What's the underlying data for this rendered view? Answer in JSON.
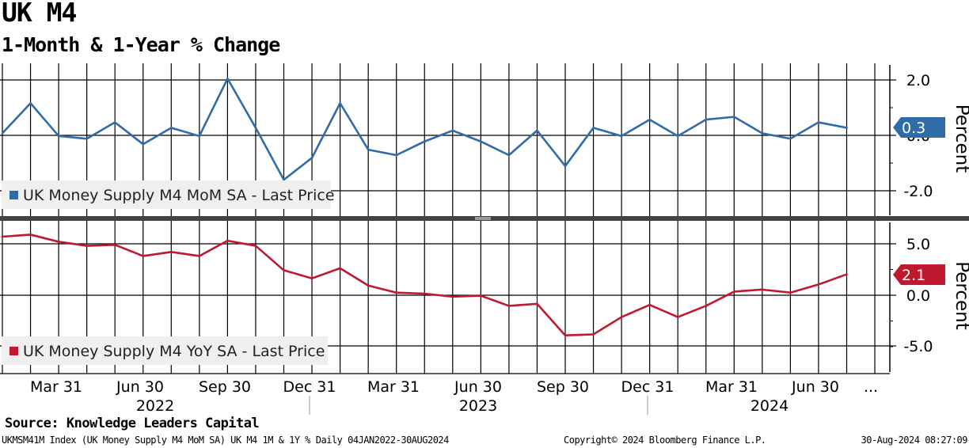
{
  "title": "UK M4",
  "subtitle": "1-Month & 1-Year % Change",
  "source": "Source: Knowledge Leaders Capital",
  "footer": {
    "left": "UKMSM41M Index (UK Money Supply M4 MoM SA) UK M4 1M & 1Y %  Daily 04JAN2022-30AUG2024",
    "middle": "Copyright© 2024 Bloomberg Finance L.P.",
    "right": "30-Aug-2024 08:27:09"
  },
  "colors": {
    "mom": "#2f6ca8",
    "yoy": "#c0182f"
  },
  "chart_data": [
    {
      "type": "line",
      "panel": "top",
      "series": [
        {
          "name": "UK Money Supply M4 MoM SA - Last Price",
          "values": [
            0.1,
            1.2,
            0.0,
            -0.1,
            0.5,
            -0.3,
            0.3,
            0.0,
            2.1,
            0.3,
            -1.6,
            -0.8,
            1.2,
            -0.5,
            -0.7,
            -0.2,
            0.2,
            -0.2,
            -0.7,
            0.2,
            -1.1,
            0.3,
            0.0,
            0.6,
            0.0,
            0.6,
            0.7,
            0.1,
            -0.1,
            0.5,
            0.3
          ]
        }
      ],
      "last_value_label": "0.3",
      "ylabel": "Percent",
      "yticks": [
        "2.0",
        "0.0",
        "-2.0"
      ],
      "ylim": [
        -2.9,
        2.6
      ]
    },
    {
      "type": "line",
      "panel": "bottom",
      "series": [
        {
          "name": "UK Money Supply M4 YoY SA - Last Price",
          "values": [
            5.8,
            6.0,
            5.3,
            4.9,
            5.0,
            3.9,
            4.3,
            3.9,
            5.4,
            4.9,
            2.5,
            1.7,
            2.7,
            1.0,
            0.3,
            0.2,
            -0.1,
            0.0,
            -1.0,
            -0.8,
            -3.9,
            -3.8,
            -2.1,
            -0.9,
            -2.1,
            -1.0,
            0.4,
            0.6,
            0.3,
            1.1,
            2.1
          ]
        }
      ],
      "last_value_label": "2.1",
      "ylabel": "Percent",
      "yticks": [
        "5.0",
        "0.0",
        "-5.0"
      ],
      "ylim": [
        -7.5,
        7.2
      ]
    }
  ],
  "x_axis": {
    "tick_labels": [
      "Mar 31",
      "Jun 30",
      "Sep 30",
      "Dec 31",
      "Mar 31",
      "Jun 30",
      "Sep 30",
      "Dec 31",
      "Mar 31",
      "Jun 30",
      "..."
    ],
    "year_labels": [
      "2022",
      "2023",
      "2024"
    ]
  }
}
